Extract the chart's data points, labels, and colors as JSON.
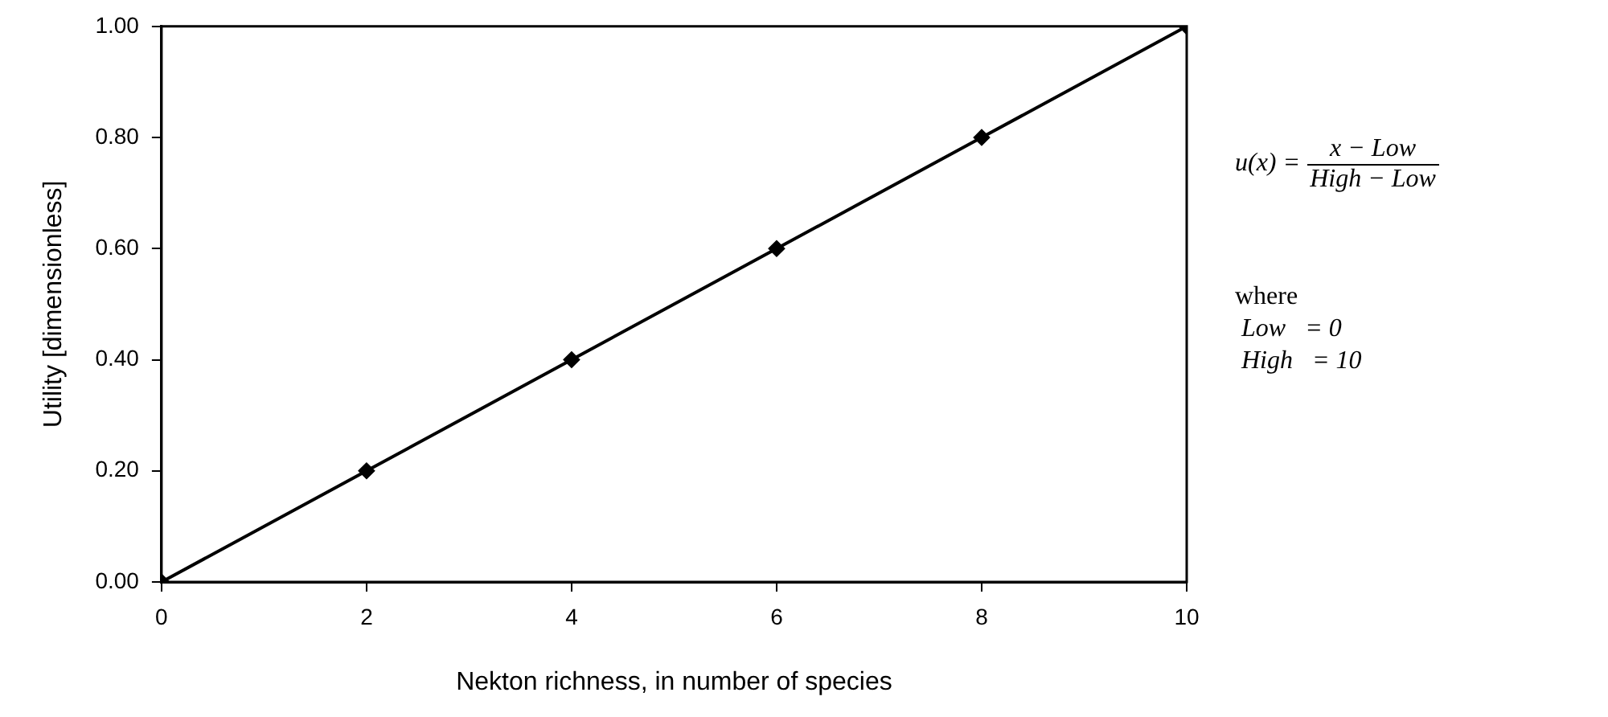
{
  "chart_data": {
    "type": "line",
    "xlabel": "Nekton richness, in number of species",
    "ylabel": "Utility [dimensionless]",
    "x": [
      0,
      2,
      4,
      6,
      8,
      10
    ],
    "series": [
      {
        "color": "#000000",
        "values": [
          0,
          0.2,
          0.4,
          0.6,
          0.8,
          1
        ]
      }
    ],
    "xlim": [
      0,
      10
    ],
    "xticks": [
      0,
      2,
      4,
      6,
      8,
      10
    ],
    "ylim": [
      0,
      1
    ],
    "yticks": [
      {
        "value": 0,
        "label": "0.00"
      },
      {
        "value": 0.2,
        "label": "0.20"
      },
      {
        "value": 0.4,
        "label": "0.40"
      },
      {
        "value": 0.6,
        "label": "0.60"
      },
      {
        "value": 0.8,
        "label": "0.80"
      },
      {
        "value": 1,
        "label": "1.00"
      }
    ],
    "grid": false,
    "legend": false,
    "marker": "diamond",
    "line_style": "solid",
    "annotations": [
      "u(x) =",
      "x − Low",
      "High − Low",
      "where",
      "Low   = 0",
      "High   = 10"
    ]
  }
}
